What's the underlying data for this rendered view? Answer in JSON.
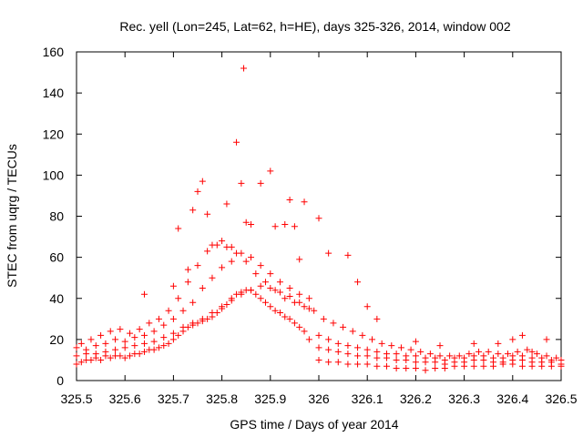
{
  "chart_data": {
    "type": "scatter",
    "title": "Rec. yell (Lon=245, Lat=62, h=HE), days 325-326, 2014, window 002",
    "xlabel": "GPS time / Days of year 2014",
    "ylabel": "STEC from uqrg / TECUs",
    "xlim": [
      325.5,
      326.5
    ],
    "ylim": [
      0,
      160
    ],
    "xticks": [
      "325.5",
      "325.6",
      "325.7",
      "325.8",
      "325.9",
      "326",
      "326.1",
      "326.2",
      "326.3",
      "326.4",
      "326.5"
    ],
    "yticks": [
      "0",
      "20",
      "40",
      "60",
      "80",
      "100",
      "120",
      "140",
      "160"
    ],
    "grid": false,
    "marker": "+",
    "color": "#ff0000",
    "series": [
      {
        "x": [
          325.5,
          325.51,
          325.52,
          325.53,
          325.54,
          325.55,
          325.56,
          325.57,
          325.58,
          325.59,
          325.6,
          325.61,
          325.62,
          325.63,
          325.64,
          325.65,
          325.66,
          325.67,
          325.68,
          325.69,
          325.7,
          325.71,
          325.72,
          325.73,
          325.74,
          325.75,
          325.76,
          325.77,
          325.78,
          325.79,
          325.8,
          325.81,
          325.82,
          325.83,
          325.84,
          325.85,
          325.86,
          325.87,
          325.88,
          325.89,
          325.9,
          325.91,
          325.92,
          325.93,
          325.94,
          325.95,
          325.96,
          325.97,
          325.98,
          326.0,
          326.02,
          326.04,
          326.06,
          326.08,
          326.1,
          326.12,
          326.14,
          326.16,
          326.18,
          326.2,
          326.22,
          326.24,
          326.26,
          326.28,
          326.3,
          326.32,
          326.34,
          326.36,
          326.38,
          326.4,
          326.42,
          326.44,
          326.46,
          326.48,
          326.5
        ],
        "y": [
          8,
          9,
          10,
          10,
          11,
          10,
          12,
          11,
          12,
          12,
          11,
          12,
          13,
          13,
          14,
          15,
          15,
          16,
          17,
          18,
          20,
          22,
          24,
          26,
          27,
          28,
          29,
          30,
          31,
          33,
          35,
          37,
          40,
          42,
          43,
          44,
          44,
          42,
          40,
          38,
          36,
          34,
          33,
          31,
          30,
          28,
          26,
          24,
          20,
          10,
          9,
          9,
          8,
          8,
          8,
          7,
          7,
          6,
          6,
          6,
          5,
          6,
          6,
          7,
          7,
          7,
          7,
          7,
          8,
          8,
          7,
          7,
          7,
          7,
          7
        ]
      },
      {
        "x": [
          325.5,
          325.52,
          325.54,
          325.56,
          325.58,
          325.6,
          325.62,
          325.64,
          325.66,
          325.68,
          325.7,
          325.72,
          325.74,
          325.76,
          325.78,
          325.8,
          325.82,
          325.84,
          325.86,
          325.88,
          325.9,
          325.92,
          325.94,
          325.96,
          325.98,
          326.0,
          326.02,
          326.04,
          326.06,
          326.08,
          326.1,
          326.12,
          326.14,
          326.16,
          326.18,
          326.2,
          326.22,
          326.24,
          326.26,
          326.28,
          326.3,
          326.32,
          326.34,
          326.36,
          326.38,
          326.4,
          326.42,
          326.44,
          326.46,
          326.48,
          326.5
        ],
        "y": [
          12,
          13,
          13,
          14,
          15,
          16,
          17,
          18,
          19,
          21,
          23,
          26,
          28,
          30,
          33,
          36,
          39,
          42,
          44,
          46,
          45,
          43,
          41,
          38,
          35,
          16,
          15,
          14,
          13,
          12,
          12,
          11,
          11,
          10,
          10,
          9,
          9,
          9,
          8,
          9,
          9,
          10,
          10,
          9,
          9,
          10,
          10,
          9,
          9,
          9,
          8
        ]
      },
      {
        "x": [
          325.5,
          325.52,
          325.54,
          325.56,
          325.58,
          325.6,
          325.62,
          325.64,
          325.66,
          325.68,
          325.7,
          325.72,
          325.74,
          325.76,
          325.78,
          325.8,
          325.82,
          325.84,
          325.86,
          325.88,
          325.9,
          325.92,
          325.94,
          325.96,
          325.98,
          326.0,
          326.02,
          326.04,
          326.06,
          326.08,
          326.1,
          326.12,
          326.14,
          326.16,
          326.18,
          326.2,
          326.22,
          326.24,
          326.26,
          326.28,
          326.3,
          326.32,
          326.34,
          326.36,
          326.38,
          326.4,
          326.42,
          326.44,
          326.46,
          326.48,
          326.5
        ],
        "y": [
          16,
          15,
          17,
          18,
          20,
          19,
          21,
          22,
          24,
          27,
          30,
          34,
          38,
          45,
          50,
          55,
          58,
          62,
          60,
          56,
          52,
          48,
          45,
          42,
          40,
          22,
          20,
          18,
          17,
          16,
          15,
          14,
          13,
          13,
          12,
          12,
          11,
          11,
          10,
          11,
          11,
          12,
          12,
          11,
          11,
          12,
          12,
          11,
          11,
          10,
          10
        ]
      },
      {
        "x": [
          325.51,
          325.53,
          325.55,
          325.57,
          325.59,
          325.61,
          325.63,
          325.65,
          325.67,
          325.69,
          325.71,
          325.73,
          325.75,
          325.77,
          325.79,
          325.81,
          325.83,
          325.85,
          325.87,
          325.89,
          325.91,
          325.93,
          325.95,
          325.97,
          325.99,
          326.01,
          326.03,
          326.05,
          326.07,
          326.09,
          326.11,
          326.13,
          326.15,
          326.17,
          326.19,
          326.21,
          326.23,
          326.25,
          326.27,
          326.29,
          326.31,
          326.33,
          326.35,
          326.37,
          326.39,
          326.41,
          326.43,
          326.45,
          326.47,
          326.49
        ],
        "y": [
          18,
          20,
          22,
          24,
          25,
          23,
          25,
          28,
          30,
          34,
          40,
          48,
          56,
          63,
          66,
          65,
          62,
          58,
          52,
          48,
          44,
          40,
          38,
          36,
          34,
          30,
          28,
          26,
          24,
          22,
          20,
          18,
          17,
          16,
          15,
          14,
          13,
          12,
          12,
          12,
          13,
          14,
          14,
          13,
          13,
          14,
          15,
          13,
          12,
          11
        ]
      },
      {
        "x": [
          325.64,
          325.7,
          325.71,
          325.73,
          325.74,
          325.75,
          325.76,
          325.77,
          325.78,
          325.8,
          325.81,
          325.82,
          325.83,
          325.84,
          325.845,
          325.85,
          325.86,
          325.88,
          325.9,
          325.91,
          325.93,
          325.94,
          325.95,
          325.96,
          325.97,
          326.0,
          326.02,
          326.06,
          326.08,
          326.1,
          326.12,
          326.2,
          326.25,
          326.32,
          326.37,
          326.4,
          326.42,
          326.44,
          326.47
        ],
        "y": [
          42,
          46,
          74,
          54,
          83,
          92,
          97,
          81,
          66,
          68,
          86,
          65,
          116,
          96,
          152,
          77,
          76,
          96,
          102,
          75,
          76,
          88,
          75,
          59,
          87,
          79,
          62,
          61,
          48,
          36,
          30,
          19,
          17,
          18,
          18,
          20,
          22,
          14,
          20
        ]
      }
    ]
  }
}
